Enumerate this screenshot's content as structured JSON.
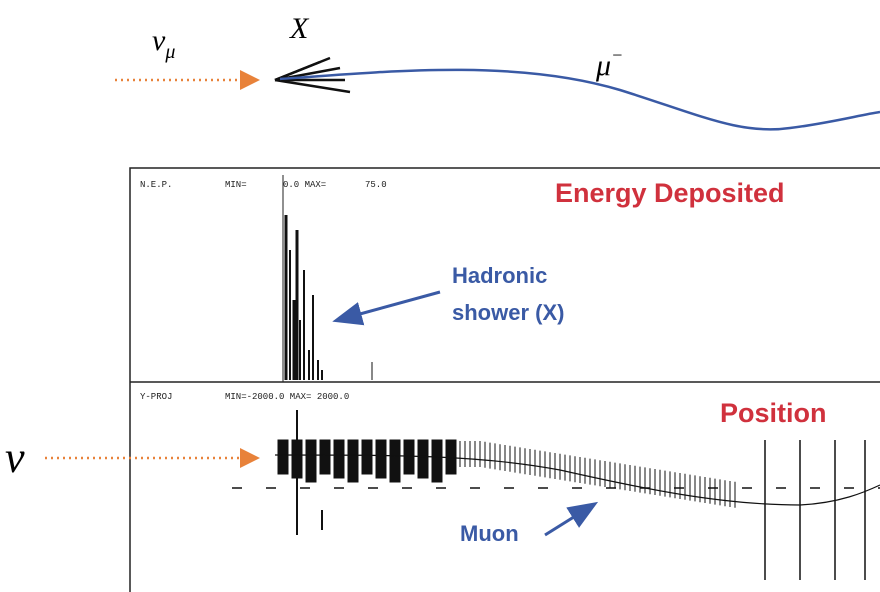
{
  "top": {
    "incoming": {
      "symbol": "ν",
      "subscript": "μ"
    },
    "vertex": "X",
    "muon": {
      "symbol": "μ",
      "superscript": "−"
    }
  },
  "energy_panel": {
    "header": [
      "N.E.P.",
      "MIN=",
      "0.0 MAX=",
      "75.0"
    ],
    "title": "Energy Deposited",
    "annotation": [
      "Hadronic",
      "shower (X)"
    ]
  },
  "position_panel": {
    "header": [
      "Y-PROJ",
      "MIN=-2000.0 MAX= 2000.0"
    ],
    "title": "Position",
    "incoming": "ν",
    "annotation": "Muon"
  }
}
